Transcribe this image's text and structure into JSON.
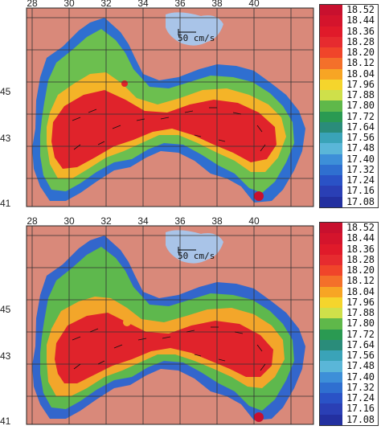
{
  "panels": [
    {
      "id": "top",
      "x_ticks": [
        "28",
        "30",
        "32",
        "34",
        "36",
        "38",
        "40"
      ],
      "y_ticks": [
        "45",
        "43",
        "41"
      ],
      "scale_label": "50 cm/s"
    },
    {
      "id": "bottom",
      "x_ticks": [
        "28",
        "30",
        "32",
        "34",
        "36",
        "38",
        "40"
      ],
      "y_ticks": [
        "45",
        "43",
        "41"
      ],
      "scale_label": "50 cm/s"
    }
  ],
  "colorbar": {
    "labels": [
      "18.52",
      "18.44",
      "18.36",
      "18.28",
      "18.20",
      "18.12",
      "18.04",
      "17.96",
      "17.88",
      "17.80",
      "17.72",
      "17.64",
      "17.56",
      "17.48",
      "17.40",
      "17.32",
      "17.24",
      "17.16",
      "17.08"
    ],
    "colors": [
      "#c8102e",
      "#d4142c",
      "#e01a2a",
      "#e62b2f",
      "#f0452a",
      "#f4702a",
      "#f7a524",
      "#f5d52c",
      "#cfe04a",
      "#5fb84a",
      "#2a9a52",
      "#2a8c7a",
      "#3aa3b8",
      "#5ab6d8",
      "#3d8fd8",
      "#2f6fd0",
      "#2a52c6",
      "#2a3fb5",
      "#2330a0"
    ]
  },
  "colors": {
    "land": "#d9897a",
    "sea_fill": "#a9c4e8",
    "grid": "#333333"
  }
}
